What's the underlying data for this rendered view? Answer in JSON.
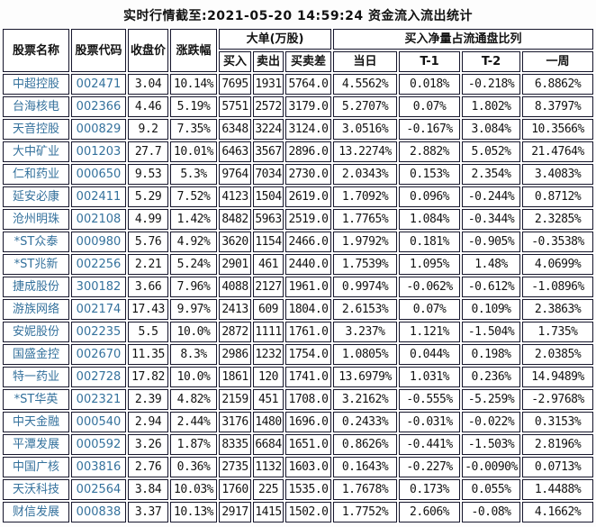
{
  "colors": {
    "accent_blue": "#34719c",
    "text_black": "#121212",
    "border": "#16162c",
    "cell_background": "#ffffff",
    "page_background": "#fdfdfd"
  },
  "chart_data": {
    "type": "table",
    "title": "实时行情截至:2021-05-20 14:59:24 资金流入流出统计",
    "column_groups": [
      {
        "label": "大单(万股)",
        "span": [
          "买入",
          "卖出",
          "买卖差"
        ]
      },
      {
        "label": "买入净量占流通盘比列",
        "span": [
          "当日",
          "T-1",
          "T-2",
          "一周"
        ]
      }
    ],
    "columns": [
      "股票名称",
      "股票代码",
      "收盘价",
      "涨跌幅",
      "买入",
      "卖出",
      "买卖差",
      "当日",
      "T-1",
      "T-2",
      "一周"
    ],
    "rows": [
      [
        "中超控股",
        "002471",
        "3.04",
        "10.14%",
        "7695",
        "1931",
        "5764.0",
        "4.5562%",
        "0.018%",
        "-0.218%",
        "6.8862%"
      ],
      [
        "台海核电",
        "002366",
        "4.46",
        "5.19%",
        "5751",
        "2572",
        "3179.0",
        "5.2707%",
        "0.07%",
        "1.802%",
        "8.3797%"
      ],
      [
        "天音控股",
        "000829",
        "9.2",
        "7.35%",
        "6348",
        "3224",
        "3124.0",
        "3.0516%",
        "-0.167%",
        "3.084%",
        "10.3566%"
      ],
      [
        "大中矿业",
        "001203",
        "27.7",
        "10.01%",
        "6463",
        "3567",
        "2896.0",
        "13.2274%",
        "2.882%",
        "5.052%",
        "21.4764%"
      ],
      [
        "仁和药业",
        "000650",
        "9.53",
        "5.3%",
        "9764",
        "7034",
        "2730.0",
        "2.0343%",
        "0.153%",
        "2.354%",
        "3.4083%"
      ],
      [
        "延安必康",
        "002411",
        "5.29",
        "7.52%",
        "4123",
        "1504",
        "2619.0",
        "1.7092%",
        "0.096%",
        "-0.244%",
        "0.8712%"
      ],
      [
        "沧州明珠",
        "002108",
        "4.99",
        "1.42%",
        "8482",
        "5963",
        "2519.0",
        "1.7765%",
        "1.084%",
        "-0.344%",
        "2.3285%"
      ],
      [
        "*ST众泰",
        "000980",
        "5.76",
        "4.92%",
        "3620",
        "1154",
        "2466.0",
        "1.9792%",
        "0.181%",
        "-0.905%",
        "-0.3538%"
      ],
      [
        "*ST兆新",
        "002256",
        "2.21",
        "5.24%",
        "2901",
        "461",
        "2440.0",
        "1.7539%",
        "1.095%",
        "1.48%",
        "4.0699%"
      ],
      [
        "捷成股份",
        "300182",
        "3.66",
        "7.96%",
        "4088",
        "2127",
        "1961.0",
        "0.9974%",
        "-0.062%",
        "-0.612%",
        "-1.0896%"
      ],
      [
        "游族网络",
        "002174",
        "17.43",
        "9.97%",
        "2413",
        "609",
        "1804.0",
        "2.6153%",
        "0.07%",
        "0.109%",
        "2.3863%"
      ],
      [
        "安妮股份",
        "002235",
        "5.5",
        "10.0%",
        "2872",
        "1111",
        "1761.0",
        "3.237%",
        "1.121%",
        "-1.504%",
        "1.735%"
      ],
      [
        "国盛金控",
        "002670",
        "11.35",
        "8.3%",
        "2986",
        "1232",
        "1754.0",
        "1.0805%",
        "0.044%",
        "0.198%",
        "2.0385%"
      ],
      [
        "特一药业",
        "002728",
        "17.82",
        "10.0%",
        "1861",
        "120",
        "1741.0",
        "13.6979%",
        "1.031%",
        "0.236%",
        "14.9489%"
      ],
      [
        "*ST华英",
        "002321",
        "2.39",
        "4.82%",
        "2159",
        "451",
        "1708.0",
        "3.2162%",
        "-0.555%",
        "-5.259%",
        "-2.9768%"
      ],
      [
        "中天金融",
        "000540",
        "2.94",
        "2.44%",
        "3176",
        "1480",
        "1696.0",
        "0.2433%",
        "-0.031%",
        "-0.022%",
        "0.3153%"
      ],
      [
        "平潭发展",
        "000592",
        "3.26",
        "1.87%",
        "8335",
        "6684",
        "1651.0",
        "0.8626%",
        "-0.441%",
        "-1.503%",
        "2.8196%"
      ],
      [
        "中国广核",
        "003816",
        "2.76",
        "0.36%",
        "2735",
        "1132",
        "1603.0",
        "0.1643%",
        "-0.227%",
        "-0.0090%",
        "0.0713%"
      ],
      [
        "天沃科技",
        "002564",
        "3.84",
        "10.03%",
        "1760",
        "225",
        "1535.0",
        "1.7678%",
        "0.173%",
        "0.055%",
        "1.4488%"
      ],
      [
        "财信发展",
        "000838",
        "3.37",
        "10.13%",
        "2917",
        "1415",
        "1502.0",
        "1.7752%",
        "2.606%",
        "-0.08%",
        "4.1662%"
      ]
    ]
  }
}
